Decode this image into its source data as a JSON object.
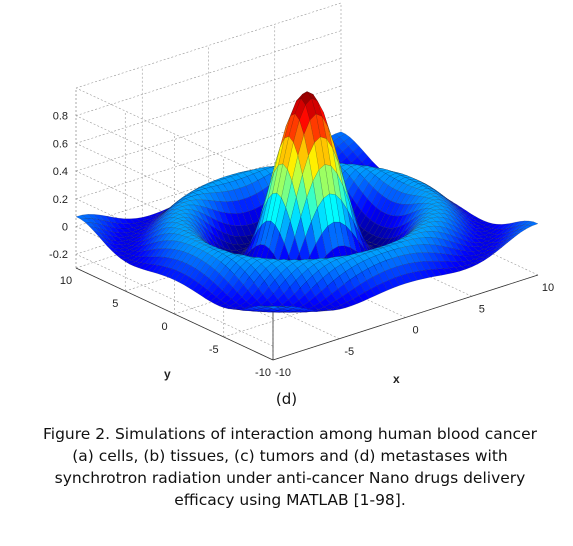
{
  "chart_data": {
    "type": "surface",
    "function": "sinc",
    "xlabel": "x",
    "ylabel": "y",
    "x_ticks": [
      "-10",
      "-5",
      "0",
      "5",
      "10"
    ],
    "y_ticks": [
      "-10",
      "-5",
      "0",
      "5",
      "10"
    ],
    "z_ticks": [
      "-0.2",
      "0",
      "0.2",
      "0.4",
      "0.6",
      "0.8"
    ],
    "xlim": [
      -10,
      10
    ],
    "ylim": [
      -10,
      10
    ],
    "zlim": [
      -0.3,
      1.0
    ],
    "peak_value": 1.0,
    "grid": true,
    "colormap": "jet"
  },
  "panel_label": "(d)",
  "caption": "Figure 2. Simulations of interaction among human blood cancer (a) cells, (b) tissues, (c) tumors and (d) metastases with synchrotron radiation under anti-cancer Nano drugs delivery efficacy using MATLAB [1-98]."
}
